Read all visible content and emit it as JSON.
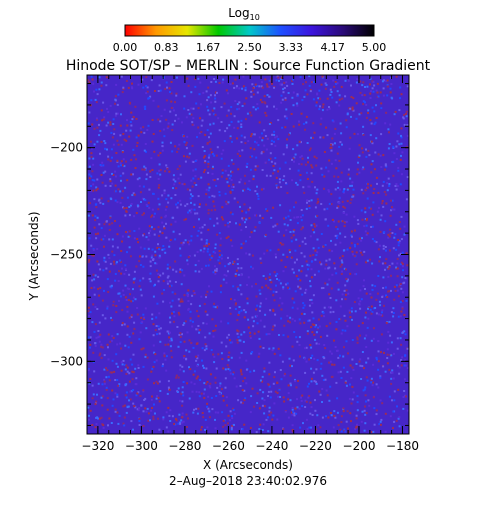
{
  "chart_data": {
    "type": "heatmap",
    "title": "Hinode SOT/SP – MERLIN : Source Function Gradient",
    "xlabel": "X (Arcseconds)",
    "ylabel": "Y (Arcseconds)",
    "xlim": [
      -325,
      -177
    ],
    "ylim": [
      -334,
      -166
    ],
    "x_ticks": [
      -320,
      -300,
      -280,
      -260,
      -240,
      -220,
      -200,
      -180
    ],
    "y_ticks": [
      -200,
      -250,
      -300
    ],
    "x_tick_labels": [
      "−320",
      "−300",
      "−280",
      "−260",
      "−240",
      "−220",
      "−200",
      "−180"
    ],
    "y_tick_labels": [
      "−200",
      "−250",
      "−300"
    ],
    "timestamp": "2–Aug–2018 23:40:02.976",
    "colorbar": {
      "label": "Log",
      "label_sub": "10",
      "min": 0.0,
      "max": 5.0,
      "ticks": [
        0.0,
        0.83,
        1.67,
        2.5,
        3.33,
        4.17,
        5.0
      ],
      "tick_labels": [
        "0.00",
        "0.83",
        "1.67",
        "2.50",
        "3.33",
        "4.17",
        "5.00"
      ],
      "colors": [
        "#ff0000",
        "#ff9900",
        "#e6e600",
        "#00c800",
        "#00c8c8",
        "#1e50ff",
        "#3c14dc",
        "#2a0a78",
        "#000000"
      ]
    },
    "field": {
      "dominant_value": 4.5,
      "background_color": "#4626c8",
      "speckle_colors": [
        "#8c2870",
        "#a02c52",
        "#2248ff",
        "#3a6cff",
        "#5a2cd8",
        "#6a58e8"
      ]
    },
    "grid": false
  }
}
